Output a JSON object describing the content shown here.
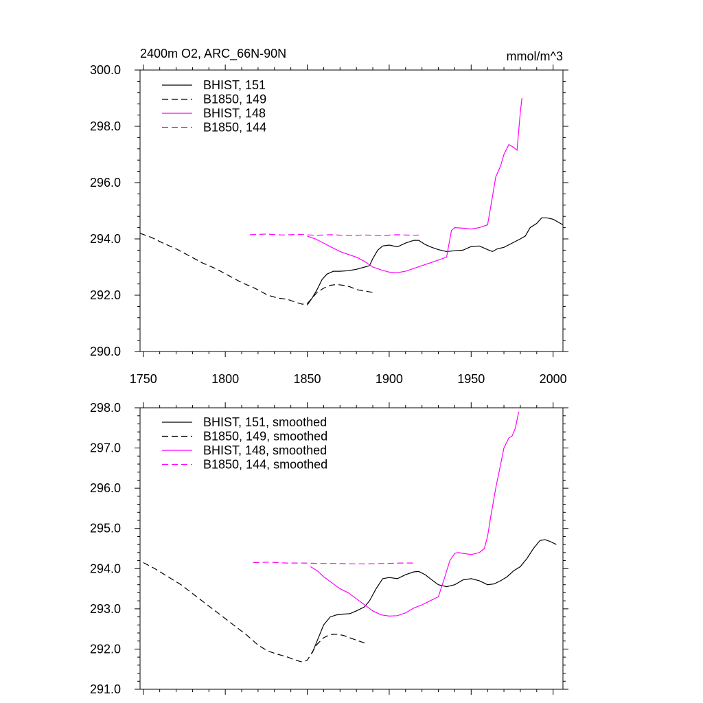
{
  "chart_data": [
    {
      "type": "line",
      "title": "2400m O2, ARC_66N-90N",
      "units": "mmol/m^3",
      "xlim": [
        1748,
        2006
      ],
      "ylim": [
        290,
        300
      ],
      "xticks": [
        1750,
        1800,
        1850,
        1900,
        1950,
        2000
      ],
      "xtick_labels": [
        "1750",
        "1800",
        "1850",
        "1900",
        "1950",
        "2000"
      ],
      "yticks": [
        290,
        292,
        294,
        296,
        298,
        300
      ],
      "ytick_labels": [
        "290.0",
        "292.0",
        "294.0",
        "296.0",
        "298.0",
        "300.0"
      ],
      "legend_position": "top-left",
      "series": [
        {
          "name": "BHIST, 151",
          "color": "#000000",
          "dash": "solid",
          "x": [
            1850,
            1853,
            1856,
            1859,
            1862,
            1866,
            1870,
            1875,
            1880,
            1885,
            1888,
            1890,
            1893,
            1896,
            1900,
            1905,
            1910,
            1915,
            1918,
            1922,
            1926,
            1930,
            1935,
            1940,
            1945,
            1950,
            1955,
            1960,
            1963,
            1966,
            1970,
            1975,
            1980,
            1983,
            1986,
            1990,
            1993,
            1996,
            2000,
            2003,
            2006
          ],
          "y": [
            291.65,
            291.9,
            292.2,
            292.55,
            292.75,
            292.85,
            292.85,
            292.87,
            292.92,
            293.0,
            293.05,
            293.3,
            293.6,
            293.75,
            293.78,
            293.72,
            293.85,
            293.95,
            293.95,
            293.8,
            293.7,
            293.62,
            293.55,
            293.58,
            293.6,
            293.73,
            293.75,
            293.62,
            293.55,
            293.65,
            293.7,
            293.85,
            294.0,
            294.1,
            294.4,
            294.55,
            294.75,
            294.75,
            294.7,
            294.6,
            294.5
          ]
        },
        {
          "name": "B1850, 149",
          "color": "#000000",
          "dash": "dashed",
          "x": [
            1748,
            1755,
            1762,
            1770,
            1778,
            1786,
            1794,
            1802,
            1810,
            1818,
            1826,
            1832,
            1838,
            1843,
            1847,
            1850,
            1853,
            1856,
            1860,
            1864,
            1868,
            1872,
            1876,
            1880,
            1885,
            1890
          ],
          "y": [
            294.2,
            294.05,
            293.85,
            293.65,
            293.4,
            293.15,
            292.95,
            292.7,
            292.45,
            292.25,
            292.0,
            291.9,
            291.85,
            291.75,
            291.68,
            291.7,
            291.9,
            292.1,
            292.25,
            292.35,
            292.38,
            292.35,
            292.3,
            292.2,
            292.15,
            292.1
          ]
        },
        {
          "name": "BHIST, 148",
          "color": "#ff00ff",
          "dash": "solid",
          "x": [
            1850,
            1855,
            1860,
            1865,
            1870,
            1875,
            1880,
            1885,
            1890,
            1895,
            1900,
            1905,
            1910,
            1915,
            1920,
            1925,
            1930,
            1935,
            1938,
            1940,
            1945,
            1950,
            1955,
            1960,
            1963,
            1965,
            1968,
            1970,
            1973,
            1976,
            1978,
            1980,
            1981
          ],
          "y": [
            294.1,
            294.0,
            293.85,
            293.7,
            293.55,
            293.45,
            293.35,
            293.2,
            293.0,
            292.9,
            292.82,
            292.8,
            292.85,
            292.95,
            293.05,
            293.15,
            293.25,
            293.35,
            294.3,
            294.4,
            294.38,
            294.35,
            294.4,
            294.5,
            295.5,
            296.2,
            296.6,
            297.0,
            297.35,
            297.25,
            297.15,
            298.5,
            299.0
          ]
        },
        {
          "name": "B1850, 144",
          "color": "#ff00ff",
          "dash": "dashed",
          "x": [
            1815,
            1825,
            1835,
            1845,
            1855,
            1865,
            1875,
            1885,
            1895,
            1905,
            1915,
            1918
          ],
          "y": [
            294.15,
            294.17,
            294.14,
            294.16,
            294.13,
            294.15,
            294.12,
            294.14,
            294.12,
            294.15,
            294.13,
            294.14
          ]
        }
      ]
    },
    {
      "type": "line",
      "title": "",
      "xlim": [
        1748,
        2006
      ],
      "ylim": [
        291,
        298
      ],
      "xticks": [
        1750,
        1800,
        1850,
        1900,
        1950,
        2000
      ],
      "yticks": [
        291,
        292,
        293,
        294,
        295,
        296,
        297,
        298
      ],
      "ytick_labels": [
        "291.0",
        "292.0",
        "293.0",
        "294.0",
        "295.0",
        "296.0",
        "297.0",
        "298.0"
      ],
      "legend_position": "top-left",
      "series": [
        {
          "name": "BHIST, 151, smoothed",
          "color": "#000000",
          "dash": "solid",
          "x": [
            1853,
            1856,
            1860,
            1864,
            1868,
            1872,
            1876,
            1880,
            1885,
            1888,
            1892,
            1896,
            1900,
            1905,
            1910,
            1915,
            1918,
            1922,
            1926,
            1930,
            1935,
            1940,
            1945,
            1950,
            1955,
            1960,
            1964,
            1968,
            1972,
            1976,
            1980,
            1984,
            1988,
            1992,
            1995,
            1998,
            2002
          ],
          "y": [
            291.9,
            292.2,
            292.6,
            292.8,
            292.85,
            292.87,
            292.88,
            292.95,
            293.05,
            293.2,
            293.5,
            293.75,
            293.78,
            293.75,
            293.85,
            293.92,
            293.93,
            293.85,
            293.72,
            293.6,
            293.55,
            293.6,
            293.72,
            293.75,
            293.7,
            293.6,
            293.62,
            293.7,
            293.8,
            293.95,
            294.05,
            294.25,
            294.5,
            294.7,
            294.72,
            294.68,
            294.6
          ]
        },
        {
          "name": "B1850, 149, smoothed",
          "color": "#000000",
          "dash": "dashed",
          "x": [
            1750,
            1757,
            1765,
            1773,
            1781,
            1789,
            1797,
            1805,
            1813,
            1820,
            1826,
            1832,
            1838,
            1843,
            1847,
            1850,
            1853,
            1856,
            1860,
            1864,
            1868,
            1872,
            1876,
            1880,
            1885
          ],
          "y": [
            294.15,
            294.0,
            293.8,
            293.6,
            293.35,
            293.1,
            292.85,
            292.6,
            292.35,
            292.1,
            291.95,
            291.87,
            291.8,
            291.72,
            291.68,
            291.72,
            291.92,
            292.12,
            292.28,
            292.36,
            292.37,
            292.34,
            292.28,
            292.22,
            292.15
          ]
        },
        {
          "name": "BHIST, 148, smoothed",
          "color": "#ff00ff",
          "dash": "solid",
          "x": [
            1852,
            1856,
            1860,
            1865,
            1870,
            1875,
            1880,
            1885,
            1890,
            1895,
            1900,
            1905,
            1910,
            1915,
            1920,
            1925,
            1930,
            1934,
            1937,
            1940,
            1942,
            1945,
            1950,
            1955,
            1958,
            1960,
            1962,
            1965,
            1968,
            1970,
            1973,
            1975,
            1977,
            1979
          ],
          "y": [
            294.05,
            293.95,
            293.8,
            293.65,
            293.5,
            293.4,
            293.25,
            293.1,
            292.95,
            292.85,
            292.82,
            292.83,
            292.9,
            293.02,
            293.1,
            293.2,
            293.3,
            293.8,
            294.2,
            294.38,
            294.4,
            294.38,
            294.35,
            294.4,
            294.5,
            294.8,
            295.3,
            296.0,
            296.6,
            297.0,
            297.25,
            297.3,
            297.5,
            297.9
          ]
        },
        {
          "name": "B1850, 144, smoothed",
          "color": "#ff00ff",
          "dash": "dashed",
          "x": [
            1817,
            1827,
            1837,
            1847,
            1857,
            1867,
            1877,
            1887,
            1897,
            1907,
            1915
          ],
          "y": [
            294.15,
            294.16,
            294.14,
            294.14,
            294.13,
            294.13,
            294.12,
            294.12,
            294.13,
            294.14,
            294.14
          ]
        }
      ]
    }
  ]
}
